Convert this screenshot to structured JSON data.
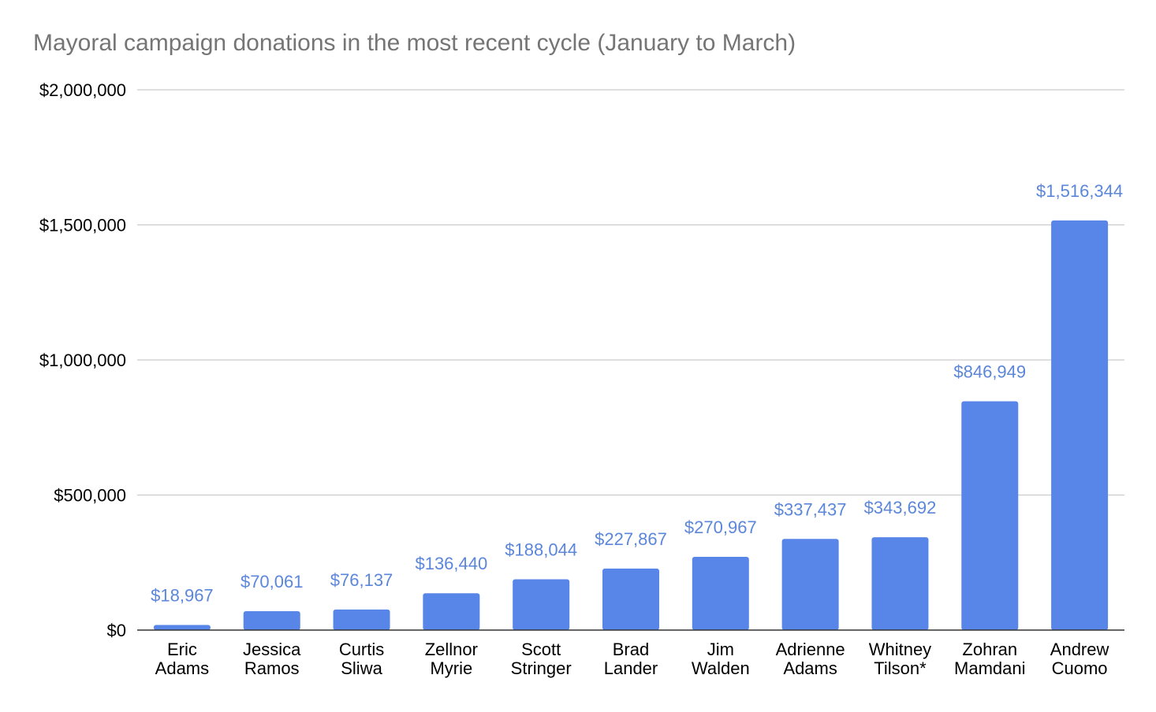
{
  "chart_data": {
    "type": "bar",
    "title": "Mayoral campaign donations in the most recent cycle (January to March)",
    "xlabel": "",
    "ylabel": "",
    "categories": [
      [
        "Eric",
        "Adams"
      ],
      [
        "Jessica",
        "Ramos"
      ],
      [
        "Curtis",
        "Sliwa"
      ],
      [
        "Zellnor",
        "Myrie"
      ],
      [
        "Scott",
        "Stringer"
      ],
      [
        "Brad",
        "Lander"
      ],
      [
        "Jim",
        "Walden"
      ],
      [
        "Adrienne",
        "Adams"
      ],
      [
        "Whitney",
        "Tilson*"
      ],
      [
        "Zohran",
        "Mamdani"
      ],
      [
        "Andrew",
        "Cuomo"
      ]
    ],
    "values": [
      18967,
      70061,
      76137,
      136440,
      188044,
      227867,
      270967,
      337437,
      343692,
      846949,
      1516344
    ],
    "data_labels": [
      "$18,967",
      "$70,061",
      "$76,137",
      "$136,440",
      "$188,044",
      "$227,867",
      "$270,967",
      "$337,437",
      "$343,692",
      "$846,949",
      "$1,516,344"
    ],
    "ylim": [
      0,
      2000000
    ],
    "yticks": [
      0,
      500000,
      1000000,
      1500000,
      2000000
    ],
    "ytick_labels": [
      "$0",
      "$500,000",
      "$1,000,000",
      "$1,500,000",
      "$2,000,000"
    ],
    "grid": true,
    "legend": "none",
    "bar_color": "#5886e8",
    "label_color": "#5b86da"
  }
}
